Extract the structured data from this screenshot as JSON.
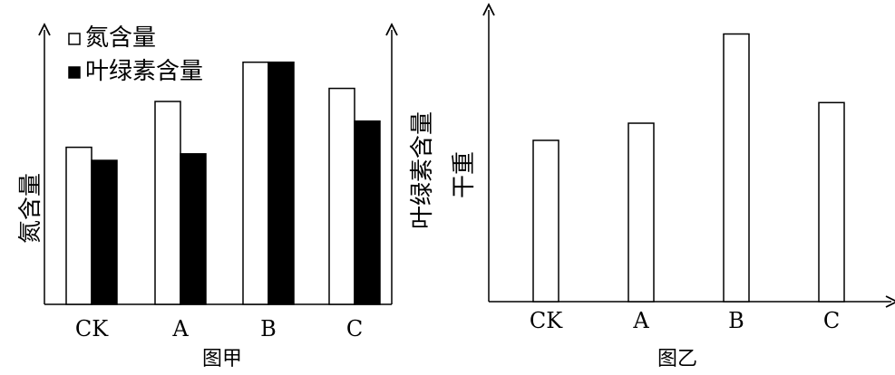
{
  "chart_data": [
    {
      "type": "bar",
      "caption": "图甲",
      "categories": [
        "CK",
        "A",
        "B",
        "C"
      ],
      "series": [
        {
          "name": "氮含量",
          "values": [
            4.8,
            6.2,
            7.4,
            6.6
          ],
          "fill": "#ffffff"
        },
        {
          "name": "叶绿素含量",
          "values": [
            4.4,
            4.6,
            7.4,
            5.6
          ],
          "fill": "#000000"
        }
      ],
      "ylabel_left": "氮含量",
      "ylabel_right": "叶绿素含量",
      "ylim": [
        0,
        8
      ],
      "grid": false,
      "legend": "top-left"
    },
    {
      "type": "bar",
      "caption": "图乙",
      "categories": [
        "CK",
        "A",
        "B",
        "C"
      ],
      "series": [
        {
          "values": [
            4.7,
            5.2,
            7.8,
            5.8
          ],
          "fill": "#ffffff"
        }
      ],
      "ylabel": "干重",
      "ylim": [
        0,
        8.5
      ],
      "grid": false
    }
  ]
}
